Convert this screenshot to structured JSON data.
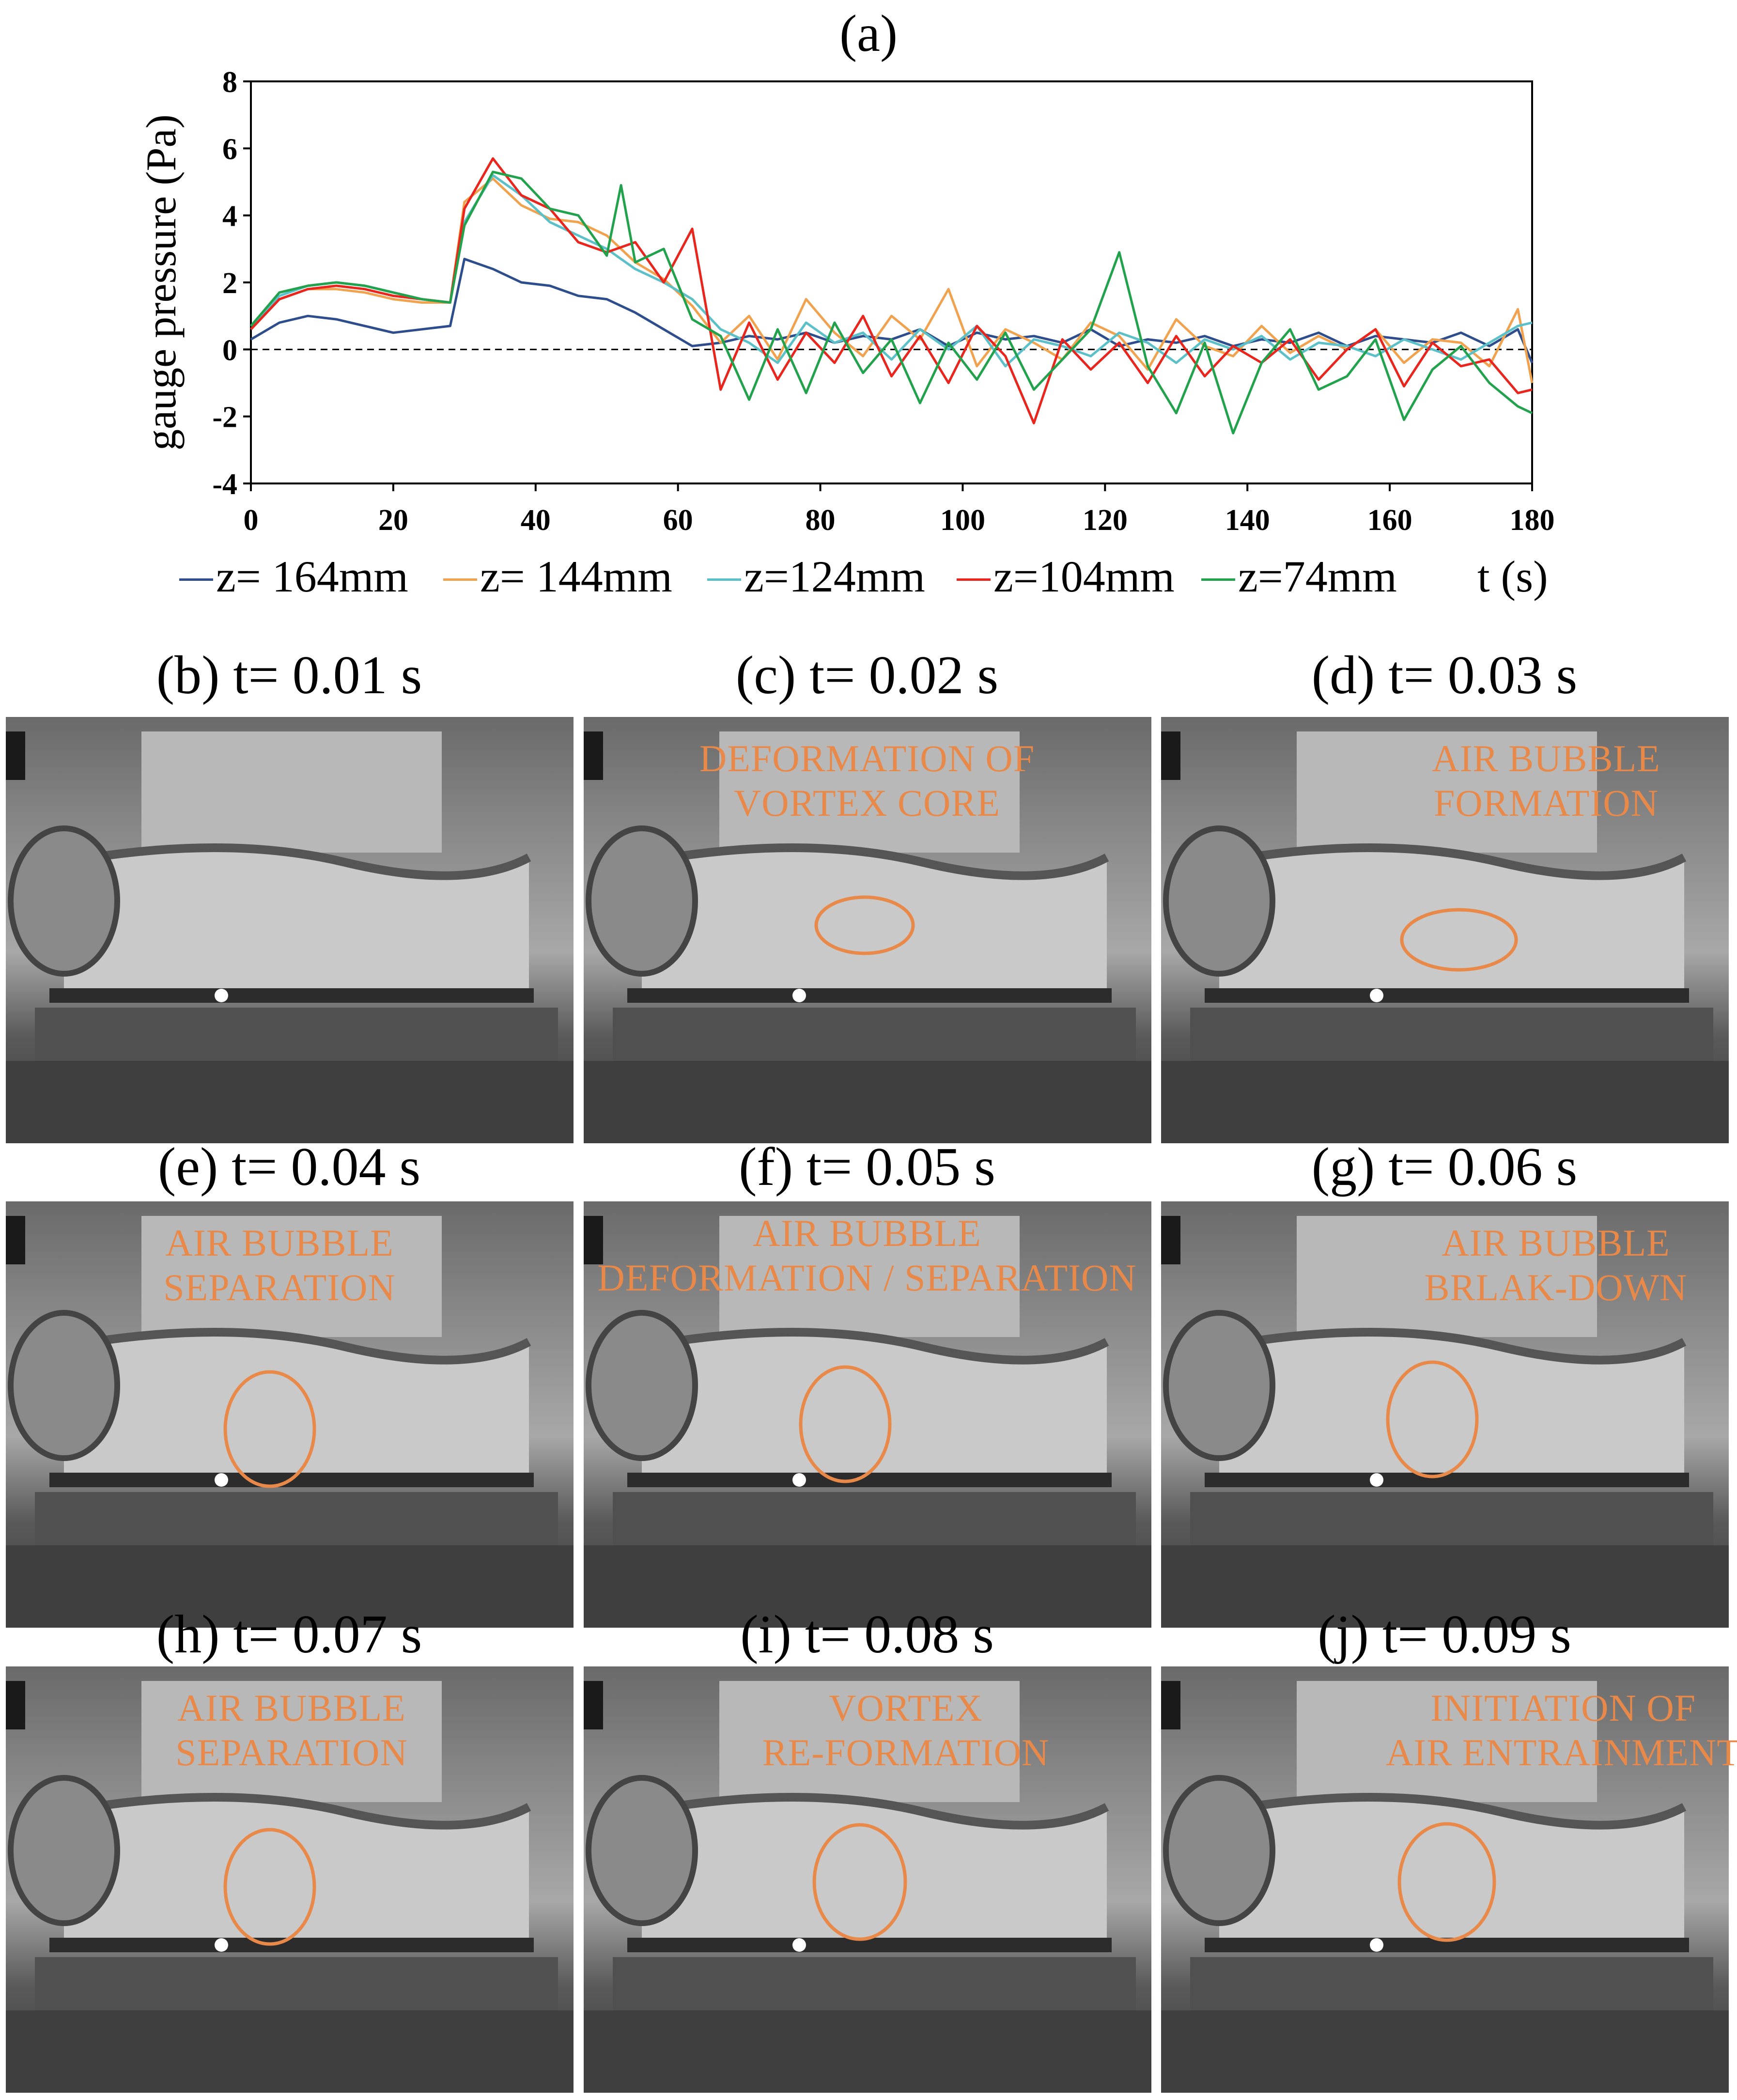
{
  "panel_a_label": "(a)",
  "chart_data": {
    "type": "line",
    "title": "(a)",
    "xlabel": "t (s)",
    "ylabel": "gauge pressure (Pa)",
    "xlim": [
      0,
      180
    ],
    "ylim": [
      -4,
      8
    ],
    "xticks": [
      0,
      20,
      40,
      60,
      80,
      100,
      120,
      140,
      160,
      180
    ],
    "yticks": [
      -4,
      -2,
      0,
      2,
      4,
      6,
      8
    ],
    "reference_line": {
      "y": 0,
      "style": "dashed"
    },
    "series": [
      {
        "name": "z= 164mm",
        "color": "#2E4D8C",
        "x": [
          0,
          4,
          8,
          12,
          16,
          20,
          24,
          28,
          30,
          34,
          38,
          42,
          46,
          50,
          54,
          58,
          62,
          66,
          70,
          74,
          78,
          82,
          86,
          90,
          94,
          98,
          102,
          106,
          110,
          114,
          118,
          122,
          126,
          130,
          134,
          138,
          142,
          146,
          150,
          154,
          158,
          162,
          166,
          170,
          174,
          178,
          180
        ],
        "y": [
          0.3,
          0.8,
          1.0,
          0.9,
          0.7,
          0.5,
          0.6,
          0.7,
          2.7,
          2.4,
          2.0,
          1.9,
          1.6,
          1.5,
          1.1,
          0.6,
          0.1,
          0.2,
          0.4,
          0.3,
          0.5,
          0.2,
          0.4,
          0.3,
          0.6,
          0.1,
          0.5,
          0.3,
          0.4,
          0.2,
          0.6,
          0.1,
          0.3,
          0.2,
          0.4,
          0.1,
          0.3,
          0.2,
          0.5,
          0.1,
          0.4,
          0.3,
          0.2,
          0.5,
          0.1,
          0.6,
          -0.4
        ]
      },
      {
        "name": "z= 144mm",
        "color": "#F0A24E",
        "x": [
          0,
          4,
          8,
          12,
          16,
          20,
          24,
          28,
          30,
          34,
          38,
          42,
          46,
          50,
          54,
          58,
          62,
          66,
          70,
          74,
          78,
          82,
          86,
          90,
          94,
          98,
          102,
          106,
          110,
          114,
          118,
          122,
          126,
          130,
          134,
          138,
          142,
          146,
          150,
          154,
          158,
          162,
          166,
          170,
          174,
          178,
          180
        ],
        "y": [
          0.6,
          1.5,
          1.8,
          1.8,
          1.7,
          1.5,
          1.4,
          1.4,
          4.4,
          5.1,
          4.3,
          3.9,
          3.8,
          3.4,
          2.6,
          2.1,
          1.3,
          0.2,
          1.0,
          -0.3,
          1.5,
          0.5,
          -0.2,
          1.0,
          0.3,
          1.8,
          -0.5,
          0.6,
          0.2,
          -0.3,
          0.8,
          0.4,
          -0.6,
          0.9,
          0.1,
          -0.2,
          0.7,
          -0.1,
          0.4,
          0.0,
          0.6,
          -0.4,
          0.3,
          0.2,
          -0.5,
          1.2,
          -1.0
        ]
      },
      {
        "name": "z=124mm",
        "color": "#5CC0C8",
        "x": [
          0,
          4,
          8,
          12,
          16,
          20,
          24,
          28,
          30,
          34,
          38,
          42,
          46,
          50,
          54,
          58,
          62,
          66,
          70,
          74,
          78,
          82,
          86,
          90,
          94,
          98,
          102,
          106,
          110,
          114,
          118,
          122,
          126,
          130,
          134,
          138,
          142,
          146,
          150,
          154,
          158,
          162,
          166,
          170,
          174,
          178,
          180
        ],
        "y": [
          0.7,
          1.6,
          1.9,
          2.0,
          1.9,
          1.7,
          1.5,
          1.4,
          3.8,
          5.2,
          4.6,
          3.8,
          3.4,
          3.0,
          2.4,
          2.0,
          1.5,
          0.6,
          0.2,
          -0.4,
          0.8,
          0.2,
          0.5,
          -0.3,
          0.6,
          0.0,
          0.7,
          -0.5,
          0.3,
          0.1,
          -0.2,
          0.5,
          0.2,
          -0.4,
          0.3,
          0.0,
          0.4,
          -0.3,
          0.2,
          0.1,
          -0.2,
          0.3,
          0.0,
          -0.3,
          0.2,
          0.7,
          0.8
        ]
      },
      {
        "name": "z=104mm",
        "color": "#E8261E",
        "x": [
          0,
          4,
          8,
          12,
          16,
          20,
          24,
          28,
          30,
          34,
          38,
          42,
          46,
          50,
          54,
          58,
          62,
          66,
          70,
          74,
          78,
          82,
          86,
          90,
          94,
          98,
          102,
          106,
          110,
          114,
          118,
          122,
          126,
          130,
          134,
          138,
          142,
          146,
          150,
          154,
          158,
          162,
          166,
          170,
          174,
          178,
          180
        ],
        "y": [
          0.6,
          1.5,
          1.8,
          1.9,
          1.8,
          1.6,
          1.5,
          1.4,
          4.2,
          5.7,
          4.6,
          4.2,
          3.2,
          2.9,
          3.2,
          2.0,
          3.6,
          -1.2,
          0.8,
          -0.9,
          0.5,
          -0.4,
          1.0,
          -0.8,
          0.4,
          -1.0,
          0.7,
          -0.2,
          -2.2,
          0.3,
          -0.6,
          0.2,
          -1.0,
          0.4,
          -0.8,
          0.1,
          -0.4,
          0.3,
          -0.9,
          0.0,
          0.6,
          -1.1,
          0.2,
          -0.5,
          -0.3,
          -1.3,
          -1.2
        ]
      },
      {
        "name": "z=74mm",
        "color": "#23A24D",
        "x": [
          0,
          4,
          8,
          12,
          16,
          20,
          24,
          28,
          30,
          34,
          38,
          42,
          46,
          50,
          52,
          54,
          58,
          62,
          66,
          70,
          74,
          78,
          82,
          86,
          90,
          94,
          98,
          102,
          106,
          110,
          114,
          118,
          122,
          126,
          130,
          134,
          138,
          142,
          146,
          150,
          154,
          158,
          162,
          166,
          170,
          174,
          178,
          180
        ],
        "y": [
          0.7,
          1.7,
          1.9,
          2.0,
          1.9,
          1.7,
          1.5,
          1.4,
          3.7,
          5.3,
          5.1,
          4.2,
          4.0,
          2.8,
          4.9,
          2.6,
          3.0,
          0.9,
          0.4,
          -1.5,
          0.6,
          -1.3,
          0.8,
          -0.7,
          0.3,
          -1.6,
          0.2,
          -0.9,
          0.5,
          -1.2,
          -0.3,
          0.6,
          2.9,
          -0.5,
          -1.9,
          0.2,
          -2.5,
          -0.4,
          0.6,
          -1.2,
          -0.8,
          0.3,
          -2.1,
          -0.6,
          0.1,
          -1.0,
          -1.7,
          -1.9
        ]
      }
    ]
  },
  "legend": [
    {
      "label": "z= 164mm",
      "color": "#2E4D8C"
    },
    {
      "label": "z= 144mm",
      "color": "#F0A24E"
    },
    {
      "label": "z=124mm",
      "color": "#5CC0C8"
    },
    {
      "label": "z=104mm",
      "color": "#E8261E"
    },
    {
      "label": "z=74mm",
      "color": "#23A24D"
    }
  ],
  "x_axis_unit": "t (s)",
  "panels": [
    {
      "title": "(b) t= 0.01 s",
      "annotation": []
    },
    {
      "title": "(c) t= 0.02 s",
      "annotation": [
        "DEFORMATION OF",
        "VORTEX CORE"
      ]
    },
    {
      "title": "(d) t= 0.03 s",
      "annotation": [
        "AIR BUBBLE",
        "FORMATION"
      ]
    },
    {
      "title": "(e) t= 0.04 s",
      "annotation": [
        "AIR BUBBLE",
        "SEPARATION"
      ]
    },
    {
      "title": "(f) t= 0.05 s",
      "annotation": [
        "AIR BUBBLE",
        "DEFORMATION / SEPARATION"
      ]
    },
    {
      "title": "(g) t= 0.06 s",
      "annotation": [
        "AIR BUBBLE",
        "BRLAK-DOWN"
      ]
    },
    {
      "title": "(h) t= 0.07 s",
      "annotation": [
        "AIR BUBBLE",
        "SEPARATION"
      ]
    },
    {
      "title": "(i) t= 0.08 s",
      "annotation": [
        "VORTEX",
        "RE-FORMATION"
      ]
    },
    {
      "title": "(j) t= 0.09 s",
      "annotation": [
        "INITIATION OF",
        "AIR ENTRAINMENT"
      ]
    }
  ],
  "colors": {
    "annotation": "#E8894A",
    "highlight_ring": "#E8894A"
  }
}
